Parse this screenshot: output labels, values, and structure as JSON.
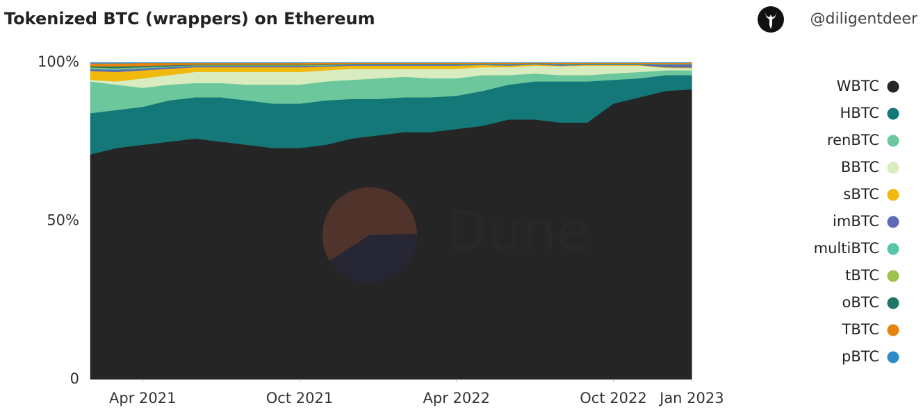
{
  "chart_data": {
    "type": "stacked_area",
    "title": "Tokenized BTC (wrappers) on Ethereum",
    "author": "@diligentdeer",
    "watermark": "Dune",
    "x": [
      "2021-02",
      "2021-03",
      "2021-04",
      "2021-05",
      "2021-06",
      "2021-07",
      "2021-08",
      "2021-09",
      "2021-10",
      "2021-11",
      "2021-12",
      "2022-01",
      "2022-02",
      "2022-03",
      "2022-04",
      "2022-05",
      "2022-06",
      "2022-07",
      "2022-08",
      "2022-09",
      "2022-10",
      "2022-11",
      "2022-12",
      "2023-01"
    ],
    "xlim": [
      "2021-02",
      "2023-02"
    ],
    "xticks": [
      {
        "value": "2021-04",
        "label": "Apr 2021"
      },
      {
        "value": "2021-10",
        "label": "Oct 2021"
      },
      {
        "value": "2022-04",
        "label": "Apr 2022"
      },
      {
        "value": "2022-10",
        "label": "Oct 2022"
      },
      {
        "value": "2023-01",
        "label": "Jan 2023"
      }
    ],
    "ylim": [
      0,
      100
    ],
    "yticks": [
      0,
      {
        "value": 50,
        "label": "50%"
      },
      {
        "value": 100,
        "label": "100%"
      }
    ],
    "series": [
      {
        "name": "WBTC",
        "color": "#252525",
        "values": [
          71,
          73,
          74,
          75,
          76,
          75,
          74,
          73,
          73,
          74,
          76,
          77,
          78,
          78,
          79,
          80,
          82,
          82,
          81,
          81,
          87,
          89,
          91,
          91.5
        ]
      },
      {
        "name": "HBTC",
        "color": "#137877",
        "values": [
          13,
          12,
          12,
          13,
          13,
          14,
          14,
          14,
          14,
          14,
          12.5,
          11.5,
          11,
          11,
          10.5,
          11,
          11,
          12,
          13,
          13,
          7.5,
          6,
          5,
          4.5
        ]
      },
      {
        "name": "renBTC",
        "color": "#6cc89c",
        "values": [
          10,
          8,
          6,
          5,
          4.5,
          4.5,
          5,
          6,
          6,
          6,
          6,
          6.5,
          6.5,
          6,
          5.5,
          5,
          3,
          2.5,
          2,
          2,
          2,
          2,
          1.5,
          1.5
        ]
      },
      {
        "name": "BBTC",
        "color": "#d8ecc0",
        "values": [
          0.5,
          1,
          3,
          3,
          3.5,
          3.5,
          4,
          4,
          4,
          3.5,
          3.5,
          3,
          2.5,
          3,
          3,
          2.5,
          2.5,
          2.5,
          2.8,
          3,
          2.5,
          2,
          0.8,
          0.7
        ]
      },
      {
        "name": "sBTC",
        "color": "#f0b90b",
        "values": [
          2.8,
          3,
          2.5,
          2,
          1.5,
          1.5,
          1.5,
          1.5,
          1.5,
          1.2,
          1,
          1,
          1,
          1,
          1,
          0.7,
          0.5,
          0.3,
          0.2,
          0.2,
          0.2,
          0.2,
          0.2,
          0.2
        ]
      },
      {
        "name": "imBTC",
        "color": "#5b6bb5",
        "values": [
          0.6,
          0.7,
          0.6,
          0.5,
          0.4,
          0.4,
          0.4,
          0.4,
          0.4,
          0.3,
          0.3,
          0.3,
          0.3,
          0.3,
          0.3,
          0.2,
          0.3,
          0.2,
          0.3,
          0.2,
          0.2,
          0.2,
          0.8,
          0.9
        ]
      },
      {
        "name": "multiBTC",
        "color": "#56c6a9",
        "values": [
          0.3,
          0.3,
          0.2,
          0.2,
          0.1,
          0.1,
          0.1,
          0.1,
          0.1,
          0.1,
          0.1,
          0.1,
          0.1,
          0.1,
          0.1,
          0.1,
          0.1,
          0.05,
          0.1,
          0.1,
          0.1,
          0.1,
          0.1,
          0.1
        ]
      },
      {
        "name": "tBTC",
        "color": "#9dc34a",
        "values": [
          0.2,
          0.2,
          0.2,
          0.1,
          0.1,
          0.1,
          0.1,
          0.1,
          0.1,
          0.1,
          0.05,
          0.05,
          0.05,
          0.05,
          0.05,
          0.05,
          0.05,
          0.05,
          0.05,
          0.05,
          0.05,
          0.05,
          0.05,
          0.05
        ]
      },
      {
        "name": "oBTC",
        "color": "#1f7567",
        "values": [
          0.4,
          0.5,
          0.4,
          0.3,
          0.2,
          0.2,
          0.2,
          0.2,
          0.2,
          0.2,
          0.15,
          0.15,
          0.15,
          0.15,
          0.15,
          0.1,
          0.15,
          0.1,
          0.15,
          0.1,
          0.1,
          0.1,
          0.1,
          0.1
        ]
      },
      {
        "name": "TBTC",
        "color": "#e6820e",
        "values": [
          0.9,
          1,
          0.9,
          0.7,
          0.5,
          0.5,
          0.5,
          0.5,
          0.5,
          0.5,
          0.3,
          0.3,
          0.3,
          0.3,
          0.3,
          0.25,
          0.3,
          0.2,
          0.3,
          0.25,
          0.25,
          0.25,
          0.3,
          0.3
        ]
      },
      {
        "name": "pBTC",
        "color": "#2e8bc8",
        "values": [
          0.3,
          0.3,
          0.2,
          0.2,
          0.2,
          0.2,
          0.2,
          0.2,
          0.2,
          0.1,
          0.1,
          0.1,
          0.1,
          0.1,
          0.1,
          0.1,
          0.1,
          0.1,
          0.1,
          0.1,
          0.1,
          0.1,
          0.15,
          0.15
        ]
      }
    ]
  }
}
